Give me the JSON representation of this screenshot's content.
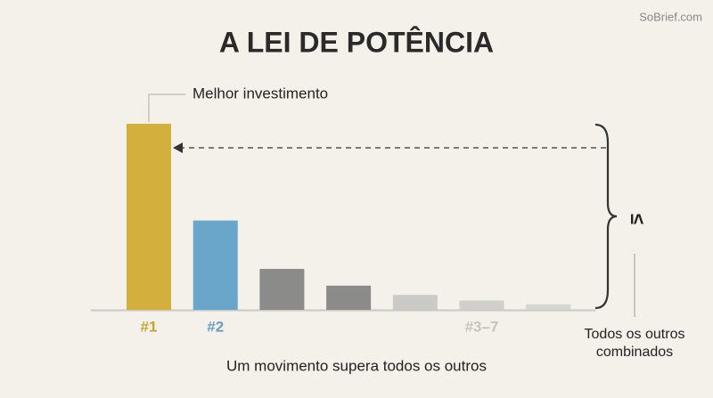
{
  "chart_data": {
    "type": "bar",
    "title": "A LEI DE POTÊNCIA",
    "watermark": "SoBrief.com",
    "annotation": "Melhor investimento",
    "symbol": "≤",
    "note_lines": [
      "Todos os outros",
      "combinados"
    ],
    "caption": "Um movimento supera todos os outros",
    "categories": [
      "#1",
      "#2",
      null,
      null,
      null,
      "#3–7",
      null
    ],
    "values": [
      100,
      48,
      22,
      13,
      8,
      5,
      3
    ],
    "colors": [
      "#d3b03d",
      "#6aa6c9",
      "#8b8b89",
      "#8b8b89",
      "#cacac6",
      "#cfcfcb",
      "#d5d5d1"
    ],
    "label_colors": [
      "#c9a431",
      "#6a9cc0",
      null,
      null,
      null,
      "#c4c4c0",
      null
    ]
  }
}
